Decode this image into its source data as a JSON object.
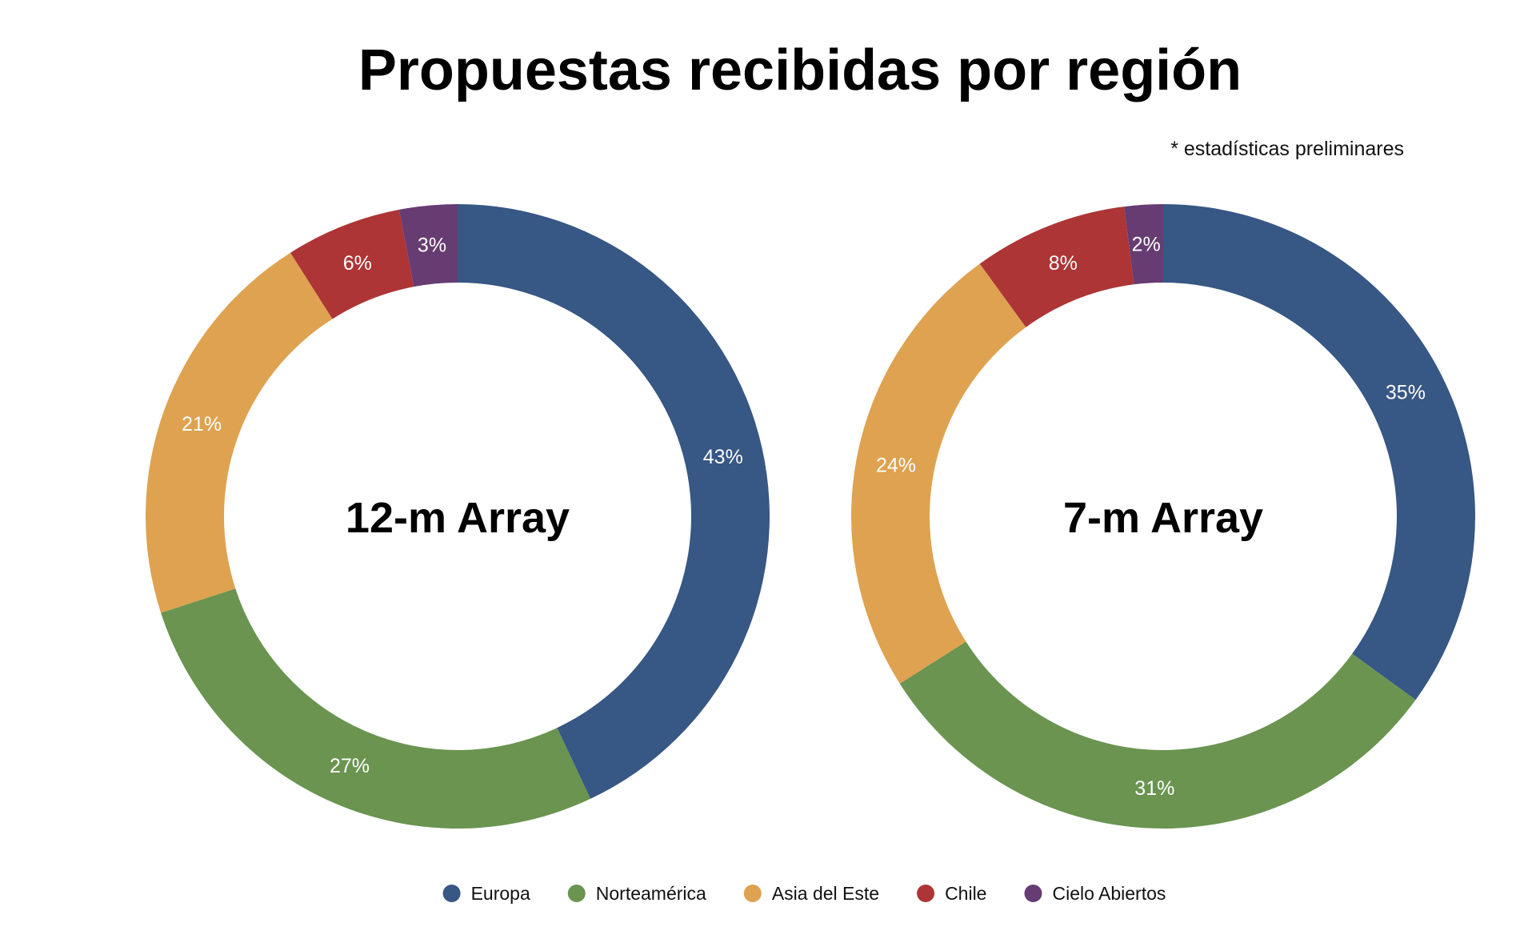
{
  "chart_data": {
    "type": "donut",
    "title": "Propuestas recibidas por región",
    "note": "* estadísticas preliminares",
    "categories": [
      "Europa",
      "Norteamérica",
      "Asia del Este",
      "Chile",
      "Cielo Abiertos"
    ],
    "colors": [
      "#375785",
      "#6a9450",
      "#dea250",
      "#ad3535",
      "#663c72"
    ],
    "legend_position": "bottom",
    "charts": [
      {
        "name": "12-m Array",
        "values": [
          43,
          27,
          21,
          6,
          3
        ],
        "labels": [
          "43%",
          "27%",
          "21%",
          "6%",
          "3%"
        ]
      },
      {
        "name": "7-m Array",
        "values": [
          35,
          31,
          24,
          8,
          2
        ],
        "labels": [
          "35%",
          "31%",
          "24%",
          "8%",
          "2%"
        ]
      }
    ]
  }
}
